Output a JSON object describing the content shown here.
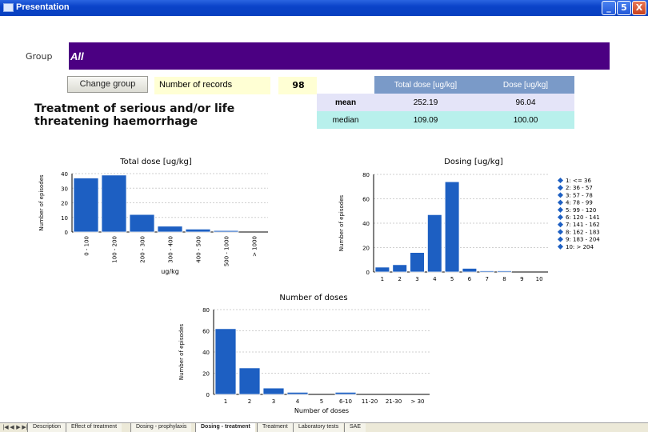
{
  "window": {
    "title": "Presentation",
    "min": "_",
    "max": "5",
    "close": "X"
  },
  "group": {
    "label": "Group",
    "value": "All"
  },
  "change_group_label": "Change group",
  "records": {
    "label": "Number of records",
    "value": "98"
  },
  "heading": "Treatment of serious and/or life threatening haemorrhage",
  "stats": {
    "headers": [
      "Total dose [ug/kg]",
      "Dose [ug/kg]"
    ],
    "rows": [
      {
        "label": "mean",
        "total": "252.19",
        "dose": "96.04"
      },
      {
        "label": "median",
        "total": "109.09",
        "dose": "100.00"
      }
    ]
  },
  "colors": {
    "bar": "#1d5fc2",
    "group_bar": "#4b0082",
    "accent": "#7a9ac8"
  },
  "chart_data": [
    {
      "type": "bar",
      "title": "Total dose [ug/kg]",
      "xlabel": "ug/kg",
      "ylabel": "Number of episodes",
      "categories": [
        "0 - 100",
        "100 - 200",
        "200 - 300",
        "300 - 400",
        "400 - 500",
        "500 - 1000",
        "> 1000"
      ],
      "values": [
        37,
        39,
        12,
        4,
        2,
        1,
        0
      ],
      "ylim": [
        0,
        40
      ],
      "yticks": [
        "0",
        "10",
        "20",
        "30",
        "40"
      ]
    },
    {
      "type": "bar",
      "title": "Dosing [ug/kg]",
      "xlabel": "",
      "ylabel": "Number of episodes",
      "categories": [
        "1",
        "2",
        "3",
        "4",
        "5",
        "6",
        "7",
        "8",
        "9",
        "10"
      ],
      "values": [
        4,
        6,
        16,
        47,
        74,
        3,
        1,
        1,
        0,
        0
      ],
      "ylim": [
        0,
        80
      ],
      "yticks": [
        "0",
        "20",
        "40",
        "60",
        "80"
      ],
      "legend": [
        "1: <= 36",
        "2: 36 - 57",
        "3: 57 - 78",
        "4: 78 - 99",
        "5: 99 - 120",
        "6: 120 - 141",
        "7: 141 - 162",
        "8: 162 - 183",
        "9: 183 - 204",
        "10: > 204"
      ],
      "legend_position": "right"
    },
    {
      "type": "bar",
      "title": "Number of doses",
      "xlabel": "Number of doses",
      "ylabel": "Number of episodes",
      "categories": [
        "1",
        "2",
        "3",
        "4",
        "5",
        "6-10",
        "11-20",
        "21-30",
        "> 30"
      ],
      "values": [
        62,
        25,
        6,
        2,
        0,
        2,
        0,
        0,
        0
      ],
      "ylim": [
        0,
        80
      ],
      "yticks": [
        "0",
        "20",
        "40",
        "60",
        "80"
      ]
    }
  ],
  "tabs": {
    "nav": [
      "|◀",
      "◀",
      "▶",
      "▶|"
    ],
    "items": [
      "Description",
      "Effect of treatment",
      "Dosing - prophylaxis",
      "Dosing - treatment",
      "Treatment",
      "Laboratory tests",
      "SAE"
    ],
    "active": "Dosing - treatment"
  }
}
